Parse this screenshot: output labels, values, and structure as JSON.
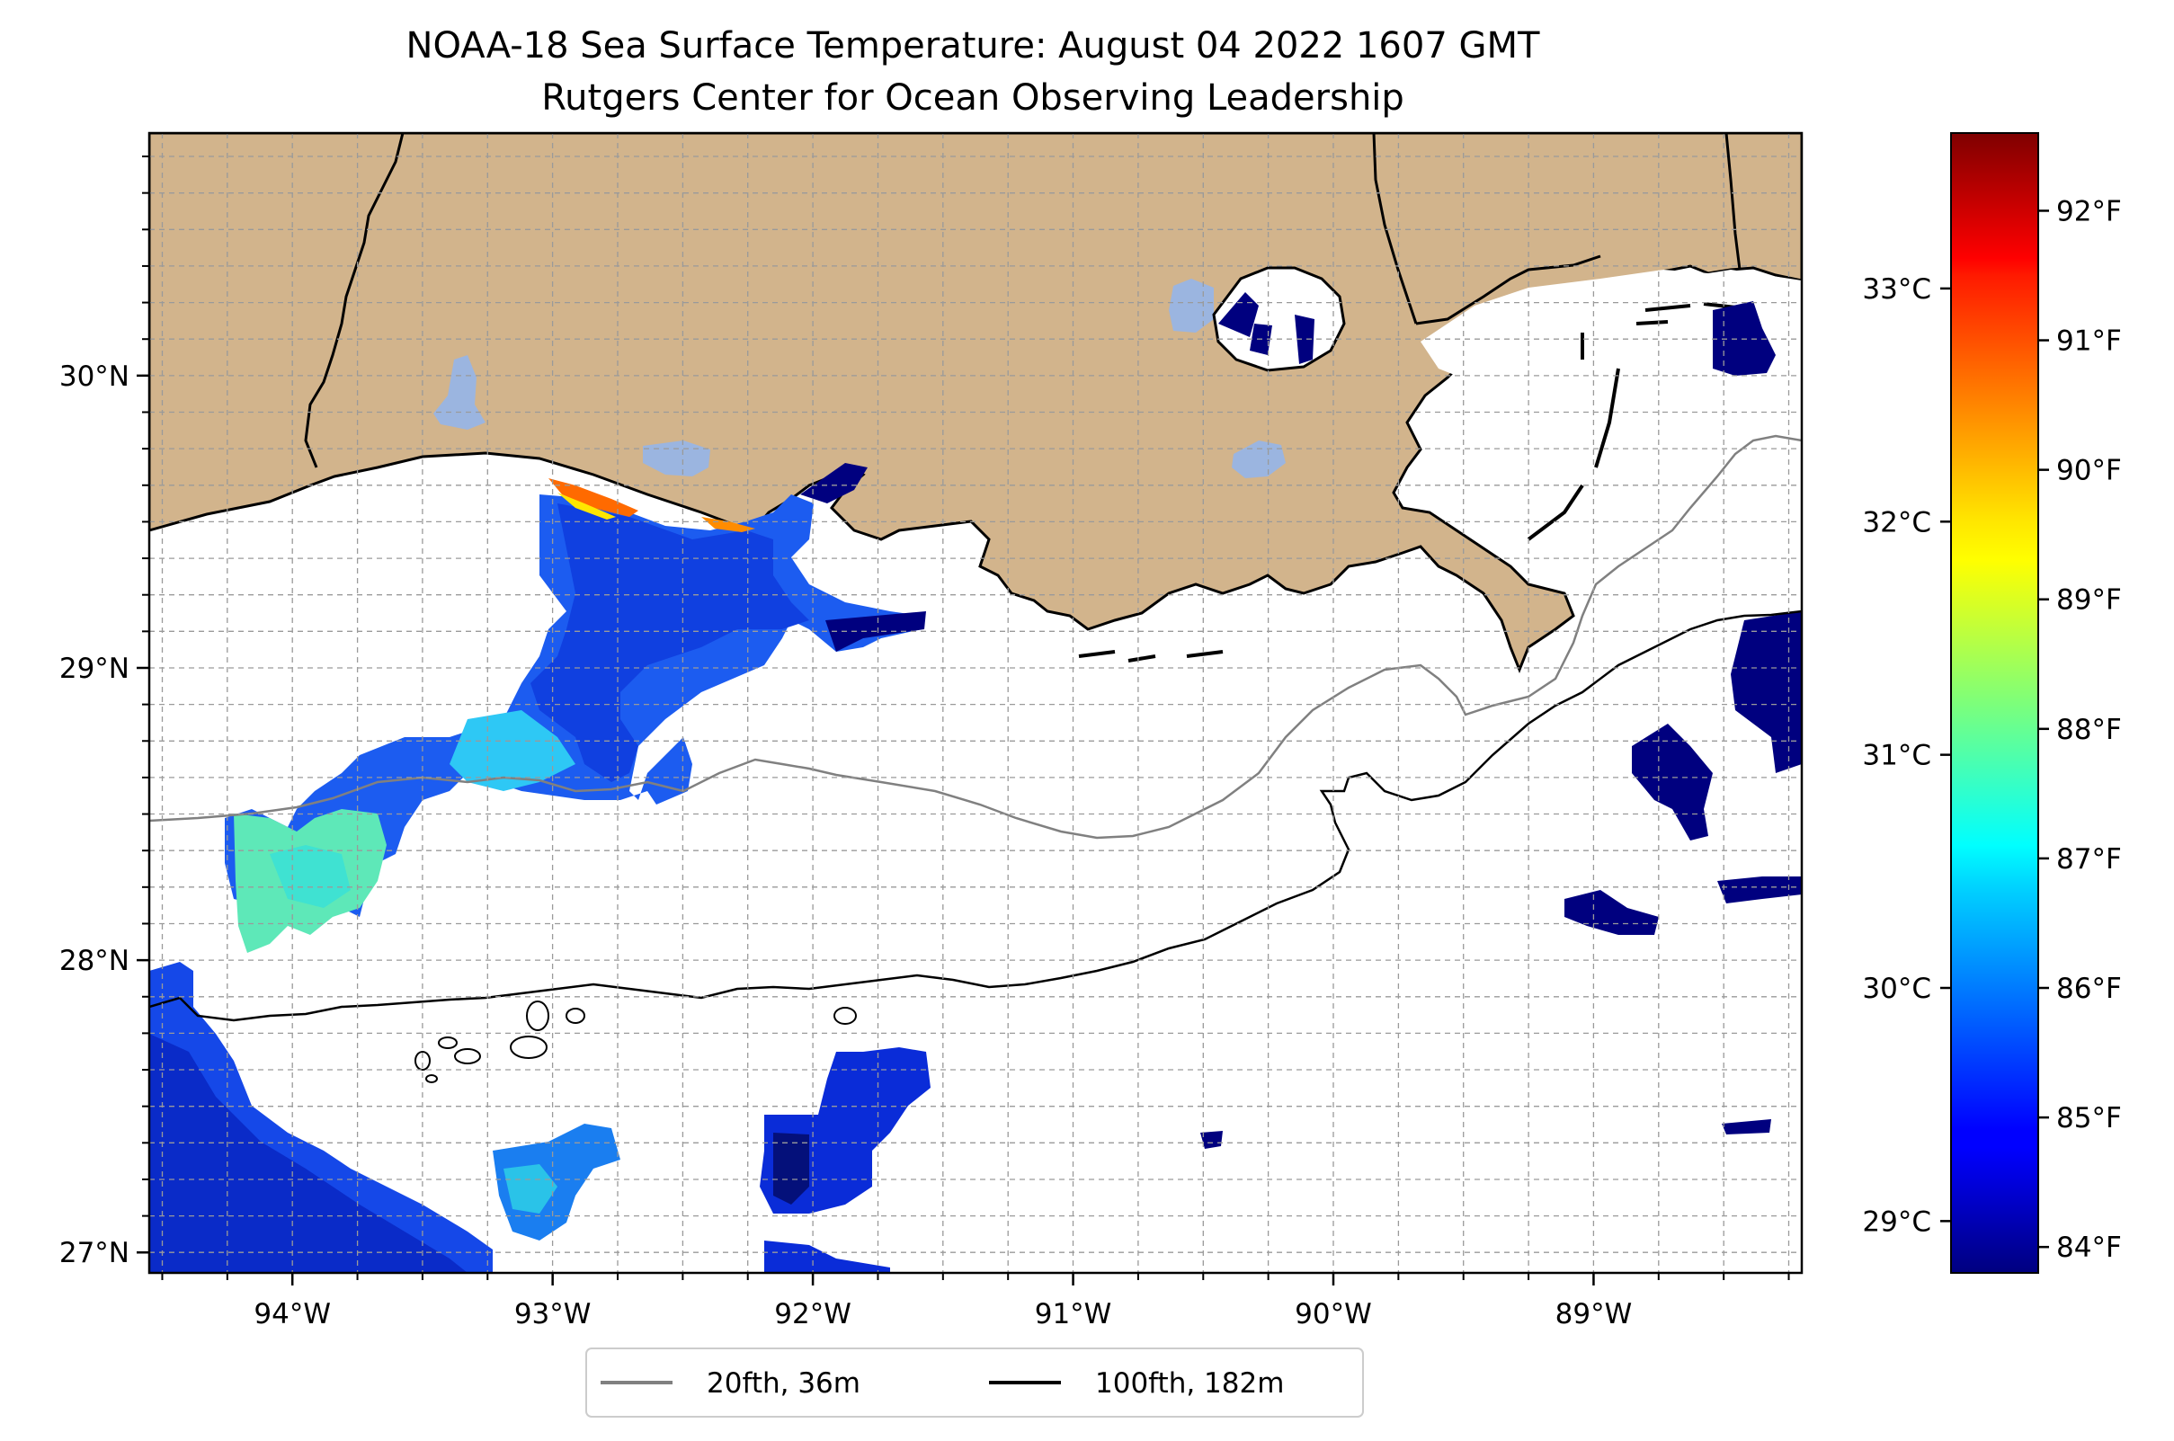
{
  "title": {
    "line1": "NOAA-18 Sea Surface Temperature: August 04 2022 1607 GMT",
    "line2": "Rutgers Center for Ocean Observing Leadership"
  },
  "map": {
    "lon_range": [
      -94.55,
      -88.2
    ],
    "lat_range": [
      26.93,
      30.83
    ],
    "gridlines": true,
    "land_color": "#d2b48c",
    "lake_color": "#9bb5e0",
    "lon_ticks": [
      {
        "value": -94,
        "label": "94°W"
      },
      {
        "value": -93,
        "label": "93°W"
      },
      {
        "value": -92,
        "label": "92°W"
      },
      {
        "value": -91,
        "label": "91°W"
      },
      {
        "value": -90,
        "label": "90°W"
      },
      {
        "value": -89,
        "label": "89°W"
      }
    ],
    "lat_ticks": [
      {
        "value": 30,
        "label": "30°N"
      },
      {
        "value": 29,
        "label": "29°N"
      },
      {
        "value": 28,
        "label": "28°N"
      },
      {
        "value": 27,
        "label": "27°N"
      }
    ]
  },
  "colorbar": {
    "colormap": "jet",
    "range_f": [
      83.8,
      92.6
    ],
    "fahrenheit_ticks": [
      {
        "value": 92,
        "label": "92°F"
      },
      {
        "value": 91,
        "label": "91°F"
      },
      {
        "value": 90,
        "label": "90°F"
      },
      {
        "value": 89,
        "label": "89°F"
      },
      {
        "value": 88,
        "label": "88°F"
      },
      {
        "value": 87,
        "label": "87°F"
      },
      {
        "value": 86,
        "label": "86°F"
      },
      {
        "value": 85,
        "label": "85°F"
      },
      {
        "value": 84,
        "label": "84°F"
      }
    ],
    "celsius_ticks": [
      {
        "value": 33,
        "label": "33°C"
      },
      {
        "value": 32,
        "label": "32°C"
      },
      {
        "value": 31,
        "label": "31°C"
      },
      {
        "value": 30,
        "label": "30°C"
      },
      {
        "value": 29,
        "label": "29°C"
      }
    ]
  },
  "legend": {
    "placement": "bottom-center",
    "entries": [
      {
        "label": "20fth, 36m",
        "color": "#808080"
      },
      {
        "label": "100fth, 182m",
        "color": "#000000"
      }
    ]
  }
}
